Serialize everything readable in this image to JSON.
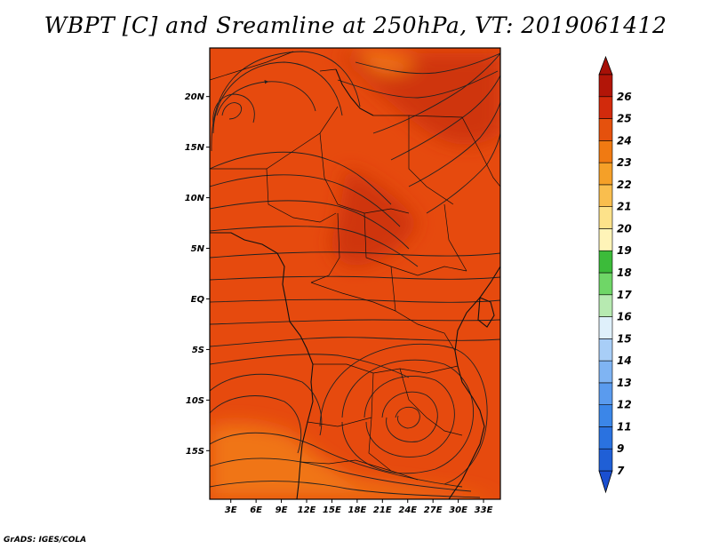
{
  "title": "WBPT [C] and Sreamline at 250hPa, VT: 2019061412",
  "footer": "GrADS: IGES/COLA",
  "map": {
    "lat_ticks": [
      {
        "label": "20N",
        "lat": 20
      },
      {
        "label": "15N",
        "lat": 15
      },
      {
        "label": "10N",
        "lat": 10
      },
      {
        "label": "5N",
        "lat": 5
      },
      {
        "label": "EQ",
        "lat": 0
      },
      {
        "label": "5S",
        "lat": -5
      },
      {
        "label": "10S",
        "lat": -10
      },
      {
        "label": "15S",
        "lat": -15
      }
    ],
    "lon_ticks": [
      {
        "label": "3E",
        "lon": 3
      },
      {
        "label": "6E",
        "lon": 6
      },
      {
        "label": "9E",
        "lon": 9
      },
      {
        "label": "12E",
        "lon": 12
      },
      {
        "label": "15E",
        "lon": 15
      },
      {
        "label": "18E",
        "lon": 18
      },
      {
        "label": "21E",
        "lon": 21
      },
      {
        "label": "24E",
        "lon": 24
      },
      {
        "label": "27E",
        "lon": 27
      },
      {
        "label": "30E",
        "lon": 30
      },
      {
        "label": "33E",
        "lon": 33
      }
    ],
    "lon_range": [
      0.5,
      35.0
    ],
    "lat_range": [
      -19.8,
      24.8
    ]
  },
  "colorbar": {
    "levels": [
      {
        "label": "7",
        "color": "#1f5fd6"
      },
      {
        "label": "9",
        "color": "#2a72e0"
      },
      {
        "label": "11",
        "color": "#3b86e8"
      },
      {
        "label": "12",
        "color": "#5a9bee"
      },
      {
        "label": "13",
        "color": "#7fb4f3"
      },
      {
        "label": "14",
        "color": "#a8cef7"
      },
      {
        "label": "15",
        "color": "#dff0fb"
      },
      {
        "label": "16",
        "color": "#b7eab1"
      },
      {
        "label": "17",
        "color": "#6fd667"
      },
      {
        "label": "18",
        "color": "#3cbb3a"
      },
      {
        "label": "19",
        "color": "#fff4b8"
      },
      {
        "label": "20",
        "color": "#fde28a"
      },
      {
        "label": "21",
        "color": "#f9be4e"
      },
      {
        "label": "22",
        "color": "#f5a028"
      },
      {
        "label": "23",
        "color": "#f07a12"
      },
      {
        "label": "24",
        "color": "#e5510d"
      },
      {
        "label": "25",
        "color": "#d22a0c"
      },
      {
        "label": "26",
        "color": "#b21508"
      }
    ],
    "bottom_color": "#1a4fd0",
    "top_color": "#a61007"
  },
  "field_colors": {
    "base": "#e64a0e",
    "warm": "#cf3410",
    "cool": "#f07414"
  }
}
